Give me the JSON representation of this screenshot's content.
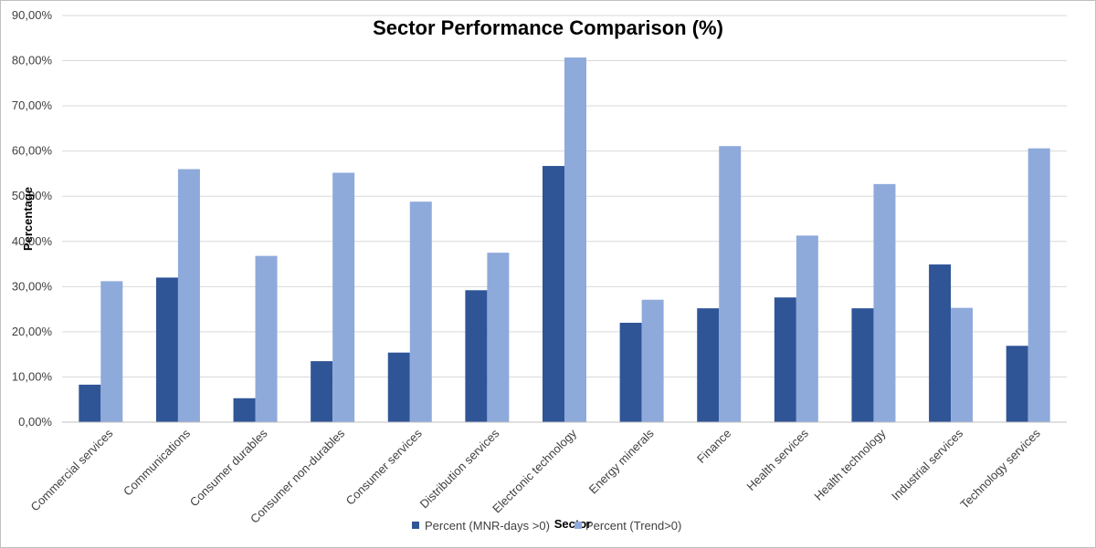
{
  "chart_data": {
    "type": "bar",
    "title": "Sector Performance Comparison (%)",
    "xlabel": "Sector",
    "ylabel": "Percentage",
    "ylim": [
      0,
      90
    ],
    "y_ticks": [
      "0,00%",
      "10,00%",
      "20,00%",
      "30,00%",
      "40,00%",
      "50,00%",
      "60,00%",
      "70,00%",
      "80,00%",
      "90,00%"
    ],
    "grid": true,
    "legend_position": "bottom",
    "categories": [
      "Commercial services",
      "Communications",
      "Consumer durables",
      "Consumer non-durables",
      "Consumer services",
      "Distribution services",
      "Electronic technology",
      "Energy minerals",
      "Finance",
      "Health services",
      "Health technology",
      "Industrial services",
      "Technology services"
    ],
    "series": [
      {
        "name": "Percent (MNR-days >0)",
        "color": "#2f5597",
        "values": [
          8.3,
          32.0,
          5.3,
          13.5,
          15.4,
          29.2,
          56.7,
          22.0,
          25.2,
          27.6,
          25.2,
          34.9,
          16.9
        ]
      },
      {
        "name": "Percent (Trend>0)",
        "color": "#8eaadb",
        "values": [
          31.2,
          56.0,
          36.8,
          55.2,
          48.8,
          37.5,
          80.7,
          27.1,
          61.1,
          41.3,
          52.7,
          25.3,
          60.6
        ]
      }
    ]
  }
}
